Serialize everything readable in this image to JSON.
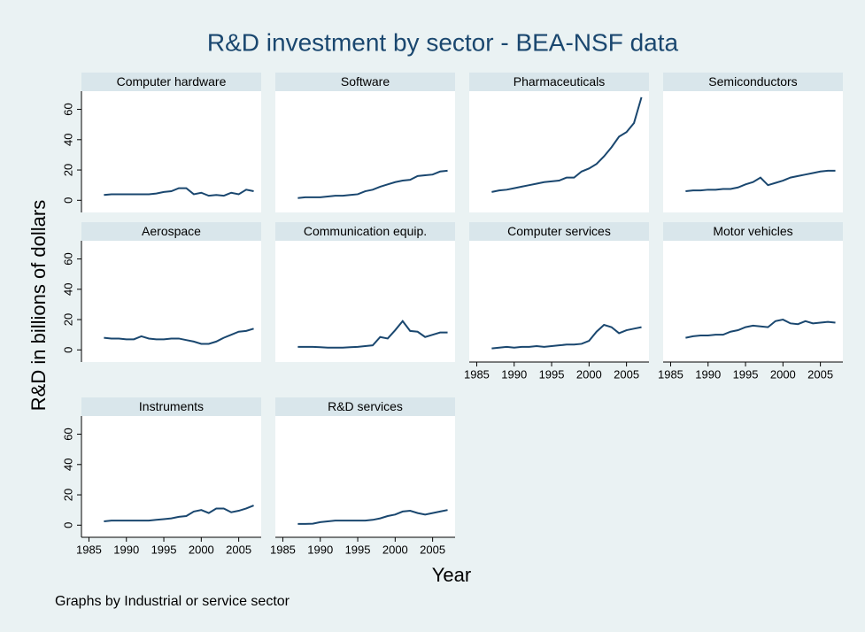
{
  "chart_data": {
    "type": "line",
    "title": "R&D investment by sector - BEA-NSF data",
    "y_label": "R&D in billions of dollars",
    "x_label": "Year",
    "note": "Graphs by Industrial or service sector",
    "color": "#1a476f",
    "xlim": [
      1984,
      2008
    ],
    "ylim": [
      -8,
      72
    ],
    "xticks": [
      1985,
      1990,
      1995,
      2000,
      2005
    ],
    "yticks": [
      0,
      20,
      40,
      60
    ],
    "x": [
      1987,
      1988,
      1989,
      1990,
      1991,
      1992,
      1993,
      1994,
      1995,
      1996,
      1997,
      1998,
      1999,
      2000,
      2001,
      2002,
      2003,
      2004,
      2005,
      2006,
      2007
    ],
    "panels": [
      {
        "title": "Computer hardware",
        "values": [
          3.5,
          4,
          4,
          4,
          4,
          4,
          4,
          4.5,
          5.5,
          6,
          8,
          8,
          4,
          5,
          3,
          3.5,
          3,
          5,
          4,
          7,
          6
        ]
      },
      {
        "title": "Software",
        "values": [
          1.5,
          2,
          2,
          2,
          2.5,
          3,
          3,
          3.5,
          4,
          6,
          7,
          9,
          10.5,
          12,
          13,
          13.5,
          16,
          16.5,
          17,
          19,
          19.5
        ]
      },
      {
        "title": "Pharmaceuticals",
        "values": [
          5.5,
          6.5,
          7,
          8,
          9,
          10,
          11,
          12,
          12.5,
          13,
          15,
          15,
          19,
          21,
          24,
          29,
          35,
          42,
          45,
          51,
          68
        ]
      },
      {
        "title": "Semiconductors",
        "values": [
          6,
          6.5,
          6.5,
          7,
          7,
          7.5,
          7.5,
          8.5,
          10.5,
          12,
          15,
          10,
          11.5,
          13,
          15,
          16,
          17,
          18,
          19,
          19.5,
          19.5
        ]
      },
      {
        "title": "Aerospace",
        "values": [
          8,
          7.5,
          7.5,
          7,
          7,
          9,
          7.5,
          7,
          7,
          7.5,
          7.5,
          6.5,
          5.5,
          4,
          4,
          5.5,
          8,
          10,
          12,
          12.5,
          14
        ]
      },
      {
        "title": "Communication equip.",
        "values": [
          2,
          2,
          2,
          1.8,
          1.5,
          1.5,
          1.5,
          1.8,
          2,
          2.5,
          3,
          8.5,
          7.5,
          13,
          19,
          12.5,
          12,
          8.5,
          10,
          11.5,
          11.5
        ]
      },
      {
        "title": "Computer services",
        "values": [
          1,
          1.5,
          2,
          1.5,
          2,
          2,
          2.5,
          2,
          2.5,
          3,
          3.5,
          3.5,
          4,
          6,
          12,
          16.5,
          15,
          11,
          13,
          14,
          15
        ]
      },
      {
        "title": "Motor vehicles",
        "values": [
          8,
          9,
          9.5,
          9.5,
          10,
          10,
          12,
          13,
          15,
          16,
          15.5,
          15,
          19,
          20,
          17.5,
          17,
          19,
          17.5,
          18,
          18.5,
          18
        ]
      },
      {
        "title": "Instruments",
        "values": [
          2.5,
          3,
          3,
          3,
          3,
          3,
          3,
          3.5,
          4,
          4.5,
          5.5,
          6,
          9,
          10,
          8,
          11,
          11,
          8.5,
          9.5,
          11,
          13
        ]
      },
      {
        "title": "R&D services",
        "values": [
          0.8,
          0.8,
          1,
          2,
          2.5,
          3,
          3,
          3,
          3,
          3,
          3.5,
          4.5,
          6,
          7,
          9,
          9.5,
          8,
          7,
          8,
          9,
          10
        ]
      }
    ]
  }
}
